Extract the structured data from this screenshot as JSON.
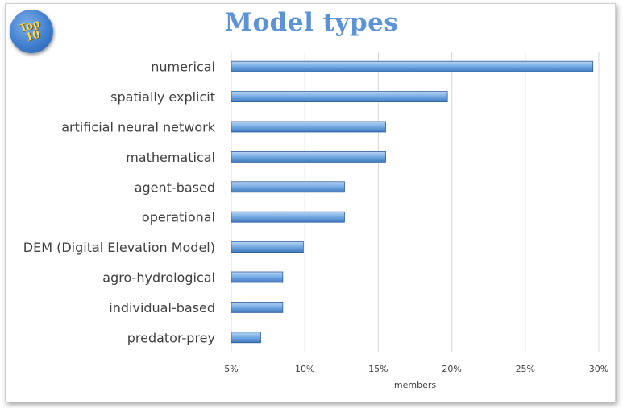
{
  "badge": {
    "line1": "Top",
    "line2": "10"
  },
  "chart_data": {
    "type": "bar",
    "orientation": "horizontal",
    "title": "Model types",
    "xlabel": "members",
    "ylabel": "",
    "categories": [
      "numerical",
      "spatially explicit",
      "artificial neural network",
      "mathematical",
      "agent-based",
      "operational",
      "DEM (Digital Elevation Model)",
      "agro-hydrological",
      "individual-based",
      "predator-prey"
    ],
    "values": [
      29.6,
      19.7,
      15.5,
      15.5,
      12.7,
      12.7,
      9.9,
      8.5,
      8.5,
      7.0
    ],
    "xlim": [
      5,
      30
    ],
    "xticks": [
      "5%",
      "10%",
      "15%",
      "20%",
      "25%",
      "30%"
    ],
    "grid": true,
    "bar_color": "#6ea3dc",
    "bar_edge_color": "#2f5f99"
  }
}
